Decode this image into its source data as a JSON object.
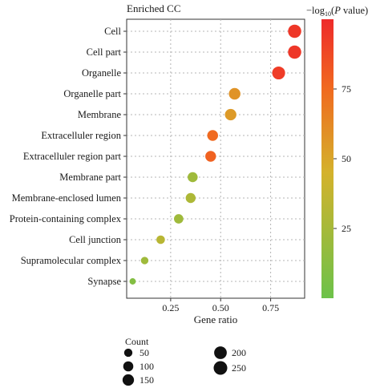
{
  "chart_data": {
    "type": "scatter",
    "title": "Enriched CC",
    "xlabel": "Gene ratio",
    "xlim": [
      0.03,
      0.92
    ],
    "xticks": [
      0.25,
      0.5,
      0.75
    ],
    "xtick_labels": [
      "0.25",
      "0.50",
      "0.75"
    ],
    "grid": true,
    "categories": [
      "Cell",
      "Cell part",
      "Organelle",
      "Organelle part",
      "Membrane",
      "Extracelluler region",
      "Extracelluler region part",
      "Membrane part",
      "Membrane-enclosed lumen",
      "Protein-containing complex",
      "Cell junction",
      "Supramolecular complex",
      "Synapse"
    ],
    "points": [
      {
        "category": "Cell",
        "gene_ratio": 0.87,
        "count": 230,
        "neg_log10_p": 95
      },
      {
        "category": "Cell part",
        "gene_ratio": 0.87,
        "count": 230,
        "neg_log10_p": 95
      },
      {
        "category": "Organelle",
        "gene_ratio": 0.79,
        "count": 215,
        "neg_log10_p": 93
      },
      {
        "category": "Organelle part",
        "gene_ratio": 0.57,
        "count": 155,
        "neg_log10_p": 58
      },
      {
        "category": "Membrane",
        "gene_ratio": 0.55,
        "count": 150,
        "neg_log10_p": 55
      },
      {
        "category": "Extracelluler region",
        "gene_ratio": 0.46,
        "count": 125,
        "neg_log10_p": 75
      },
      {
        "category": "Extracelluler region part",
        "gene_ratio": 0.45,
        "count": 122,
        "neg_log10_p": 78
      },
      {
        "category": "Membrane part",
        "gene_ratio": 0.36,
        "count": 98,
        "neg_log10_p": 22
      },
      {
        "category": "Membrane-enclosed lumen",
        "gene_ratio": 0.35,
        "count": 95,
        "neg_log10_p": 28
      },
      {
        "category": "Protein-containing complex",
        "gene_ratio": 0.29,
        "count": 78,
        "neg_log10_p": 22
      },
      {
        "category": "Cell junction",
        "gene_ratio": 0.2,
        "count": 55,
        "neg_log10_p": 33
      },
      {
        "category": "Supramolecular complex",
        "gene_ratio": 0.12,
        "count": 33,
        "neg_log10_p": 22
      },
      {
        "category": "Synapse",
        "gene_ratio": 0.06,
        "count": 15,
        "neg_log10_p": 10
      }
    ],
    "colorbar": {
      "title_prefix": "−log",
      "title_sub": "10",
      "title_paren_open": "(",
      "title_p": "P",
      "title_suffix": " value)",
      "range": [
        0,
        100
      ],
      "ticks": [
        25,
        50,
        75
      ],
      "tick_labels": [
        "25",
        "50",
        "75"
      ],
      "colors": [
        "#6cc24a",
        "#d4b22c",
        "#f06a20",
        "#ee2a2a"
      ]
    },
    "size_legend": {
      "title": "Count",
      "items": [
        {
          "label": "50",
          "value": 50
        },
        {
          "label": "100",
          "value": 100
        },
        {
          "label": "150",
          "value": 150
        },
        {
          "label": "200",
          "value": 200
        },
        {
          "label": "250",
          "value": 250
        }
      ]
    }
  }
}
